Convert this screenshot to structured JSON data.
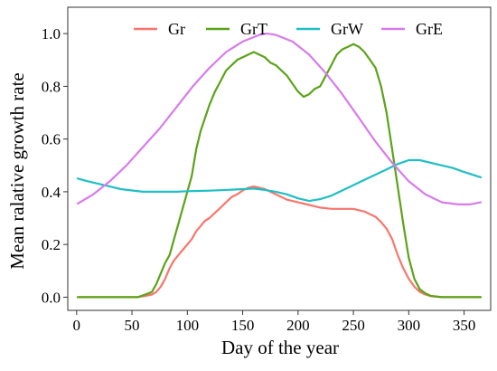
{
  "chart_data": {
    "type": "line",
    "title": "",
    "xlabel": "Day of the year",
    "ylabel": "Mean ralative growth rate",
    "xlim": [
      -8,
      374
    ],
    "ylim": [
      -0.05,
      1.1
    ],
    "x_ticks": [
      0,
      50,
      100,
      150,
      200,
      250,
      300,
      350
    ],
    "y_ticks": [
      0.0,
      0.2,
      0.4,
      0.6,
      0.8,
      1.0
    ],
    "y_tick_labels": [
      "0.0",
      "0.2",
      "0.4",
      "0.6",
      "0.8",
      "1.0"
    ],
    "grid": false,
    "legend_position": "top",
    "series": [
      {
        "name": "Gr",
        "color": "#F8766D",
        "x": [
          1,
          40,
          55,
          62,
          68,
          72,
          76,
          80,
          84,
          88,
          92,
          96,
          100,
          104,
          108,
          112,
          116,
          120,
          125,
          130,
          135,
          140,
          145,
          150,
          155,
          160,
          165,
          170,
          175,
          180,
          185,
          190,
          195,
          200,
          205,
          210,
          215,
          220,
          230,
          240,
          250,
          255,
          260,
          265,
          270,
          275,
          280,
          285,
          290,
          295,
          300,
          305,
          310,
          315,
          320,
          330,
          340,
          365
        ],
        "y": [
          0.0,
          0.0,
          0.0,
          0.005,
          0.01,
          0.02,
          0.04,
          0.07,
          0.11,
          0.14,
          0.16,
          0.18,
          0.2,
          0.22,
          0.25,
          0.27,
          0.29,
          0.3,
          0.32,
          0.34,
          0.36,
          0.38,
          0.39,
          0.405,
          0.415,
          0.42,
          0.415,
          0.41,
          0.4,
          0.39,
          0.38,
          0.37,
          0.365,
          0.36,
          0.355,
          0.35,
          0.345,
          0.34,
          0.335,
          0.335,
          0.335,
          0.33,
          0.325,
          0.315,
          0.305,
          0.285,
          0.26,
          0.22,
          0.16,
          0.11,
          0.07,
          0.04,
          0.02,
          0.01,
          0.004,
          0.0,
          0.0,
          0.0
        ]
      },
      {
        "name": "GrT",
        "color": "#5BA319",
        "x": [
          1,
          40,
          55,
          62,
          68,
          72,
          76,
          80,
          84,
          88,
          92,
          96,
          100,
          104,
          108,
          112,
          116,
          120,
          125,
          130,
          135,
          140,
          145,
          150,
          155,
          160,
          165,
          170,
          175,
          180,
          185,
          190,
          195,
          200,
          205,
          210,
          215,
          220,
          225,
          230,
          235,
          240,
          245,
          250,
          255,
          260,
          265,
          270,
          275,
          280,
          285,
          290,
          295,
          300,
          305,
          310,
          315,
          320,
          330,
          340,
          365
        ],
        "y": [
          0.0,
          0.0,
          0.0,
          0.01,
          0.02,
          0.05,
          0.09,
          0.13,
          0.16,
          0.22,
          0.28,
          0.34,
          0.4,
          0.46,
          0.56,
          0.63,
          0.68,
          0.73,
          0.78,
          0.82,
          0.86,
          0.88,
          0.9,
          0.91,
          0.92,
          0.93,
          0.92,
          0.91,
          0.89,
          0.88,
          0.86,
          0.84,
          0.81,
          0.78,
          0.76,
          0.77,
          0.79,
          0.8,
          0.84,
          0.88,
          0.92,
          0.94,
          0.95,
          0.96,
          0.95,
          0.93,
          0.9,
          0.87,
          0.8,
          0.7,
          0.56,
          0.42,
          0.28,
          0.15,
          0.07,
          0.03,
          0.015,
          0.005,
          0.0,
          0.0,
          0.0
        ]
      },
      {
        "name": "GrW",
        "color": "#1FBFC4",
        "x": [
          1,
          10,
          20,
          30,
          40,
          50,
          60,
          70,
          80,
          90,
          100,
          110,
          120,
          130,
          140,
          150,
          160,
          170,
          180,
          190,
          200,
          210,
          220,
          230,
          240,
          250,
          260,
          270,
          280,
          290,
          300,
          310,
          320,
          330,
          340,
          350,
          365
        ],
        "y": [
          0.45,
          0.44,
          0.43,
          0.42,
          0.41,
          0.405,
          0.4,
          0.4,
          0.4,
          0.4,
          0.402,
          0.403,
          0.404,
          0.406,
          0.408,
          0.41,
          0.412,
          0.407,
          0.4,
          0.39,
          0.375,
          0.365,
          0.372,
          0.385,
          0.405,
          0.425,
          0.445,
          0.465,
          0.485,
          0.505,
          0.52,
          0.52,
          0.51,
          0.5,
          0.49,
          0.475,
          0.455
        ]
      },
      {
        "name": "GrE",
        "color": "#D77BEA",
        "x": [
          1,
          15,
          30,
          45,
          60,
          75,
          90,
          105,
          120,
          135,
          150,
          165,
          172,
          180,
          195,
          210,
          225,
          240,
          255,
          270,
          285,
          300,
          315,
          330,
          345,
          355,
          365
        ],
        "y": [
          0.355,
          0.39,
          0.44,
          0.5,
          0.57,
          0.64,
          0.72,
          0.8,
          0.87,
          0.93,
          0.97,
          0.995,
          1.0,
          0.995,
          0.97,
          0.92,
          0.85,
          0.77,
          0.68,
          0.59,
          0.51,
          0.44,
          0.39,
          0.36,
          0.352,
          0.352,
          0.36
        ]
      }
    ]
  }
}
